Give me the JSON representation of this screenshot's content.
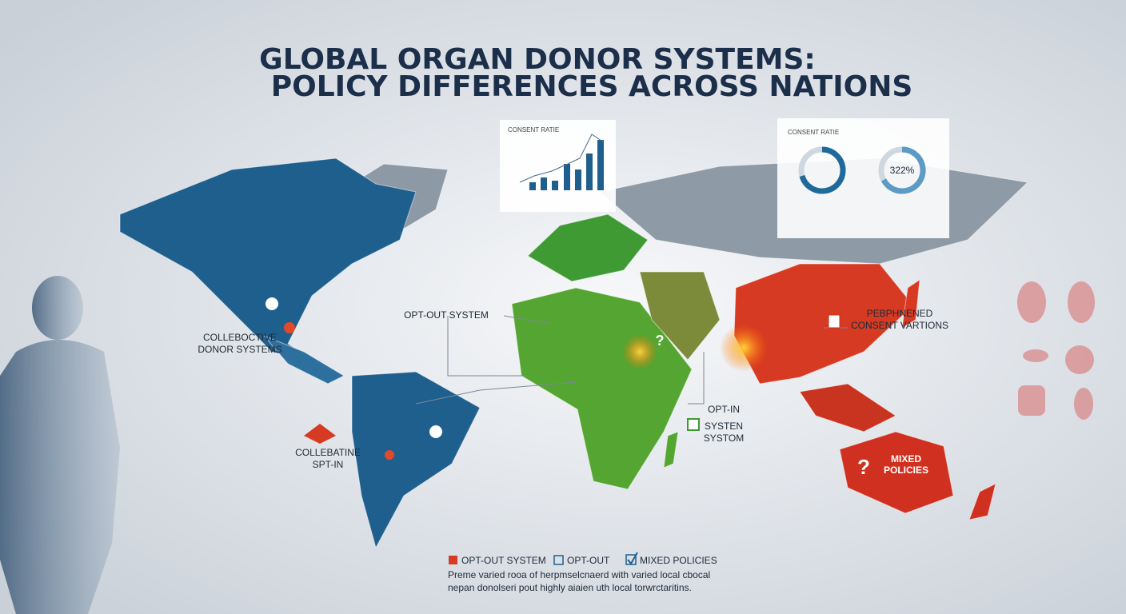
{
  "header": {
    "title_line1": "GLOBAL ORGAN DONOR SYSTEMS:",
    "title_line2": "POLICY  DIFFERENCES ACROSS NATIONS"
  },
  "inset_left": {
    "title": "CONSENT RATIE"
  },
  "inset_right": {
    "title": "CONSENT RATIE",
    "donut_label": "322%"
  },
  "map_labels": {
    "north_america": [
      "COLLEBOCTIVE",
      "DONOR SYSTEMS"
    ],
    "europe": "OPT-OUT SYSTEM",
    "asia": [
      "PEBPHNENED",
      "CONSENT VARTIONS"
    ],
    "africa": [
      "OPT-IN",
      "SYSTEN",
      "SYSTOM"
    ],
    "south_america": [
      "COLLEBATINE",
      "SPT-IN"
    ],
    "australia": [
      "MIXED",
      "POLICIES"
    ]
  },
  "legend": [
    "OPT-OUT SYSTEM",
    "OPT-OUT",
    "MIXED POLICIES"
  ],
  "footnote": [
    "Preme varied rooa of herpmselcnaerd with varied local cbocal",
    "nepan donolseri pout highly aiaien uth local torwrctaritins."
  ]
}
